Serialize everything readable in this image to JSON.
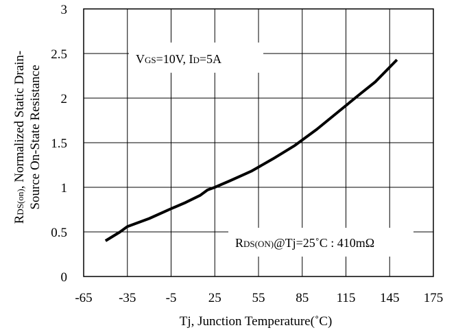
{
  "chart_data": {
    "type": "line",
    "title": "",
    "xlabel": "Tj, Junction Temperature(˚C)",
    "ylabel_line1": "R",
    "ylabel_line1_sub": "DS(on)",
    "ylabel_line1_rest": ", Normalized Static Drain-",
    "ylabel_line2": "Source On-State Resistance",
    "xlim": [
      -65,
      175
    ],
    "ylim": [
      0,
      3
    ],
    "xticks": [
      -65,
      -35,
      -5,
      25,
      55,
      85,
      115,
      145,
      175
    ],
    "xtick_labels": [
      "-65",
      "-35",
      "-5",
      "25",
      "55",
      "85",
      "115",
      "145",
      "175"
    ],
    "yticks": [
      0,
      0.5,
      1,
      1.5,
      2,
      2.5,
      3
    ],
    "ytick_labels": [
      "0",
      "0.5",
      "1",
      "1.5",
      "2",
      "2.5",
      "3"
    ],
    "grid": true,
    "series": [
      {
        "x": [
          -50,
          -40,
          -35,
          -20,
          -5,
          5,
          15,
          20,
          25,
          35,
          50,
          65,
          80,
          95,
          110,
          125,
          135,
          150
        ],
        "y": [
          0.4,
          0.5,
          0.56,
          0.65,
          0.76,
          0.83,
          0.91,
          0.97,
          1.0,
          1.07,
          1.18,
          1.32,
          1.47,
          1.65,
          1.85,
          2.05,
          2.18,
          2.43
        ],
        "color": "#000000"
      }
    ],
    "annotations": {
      "condition": {
        "v": "V",
        "v_sub": "GS",
        "v_rest": "=10V, I",
        "i_sub": "D",
        "i_rest": "=5A"
      },
      "reference": {
        "r": "R",
        "r_sub": "DS(ON)",
        "rest": "@Tj=25˚C : 410mΩ"
      }
    }
  }
}
